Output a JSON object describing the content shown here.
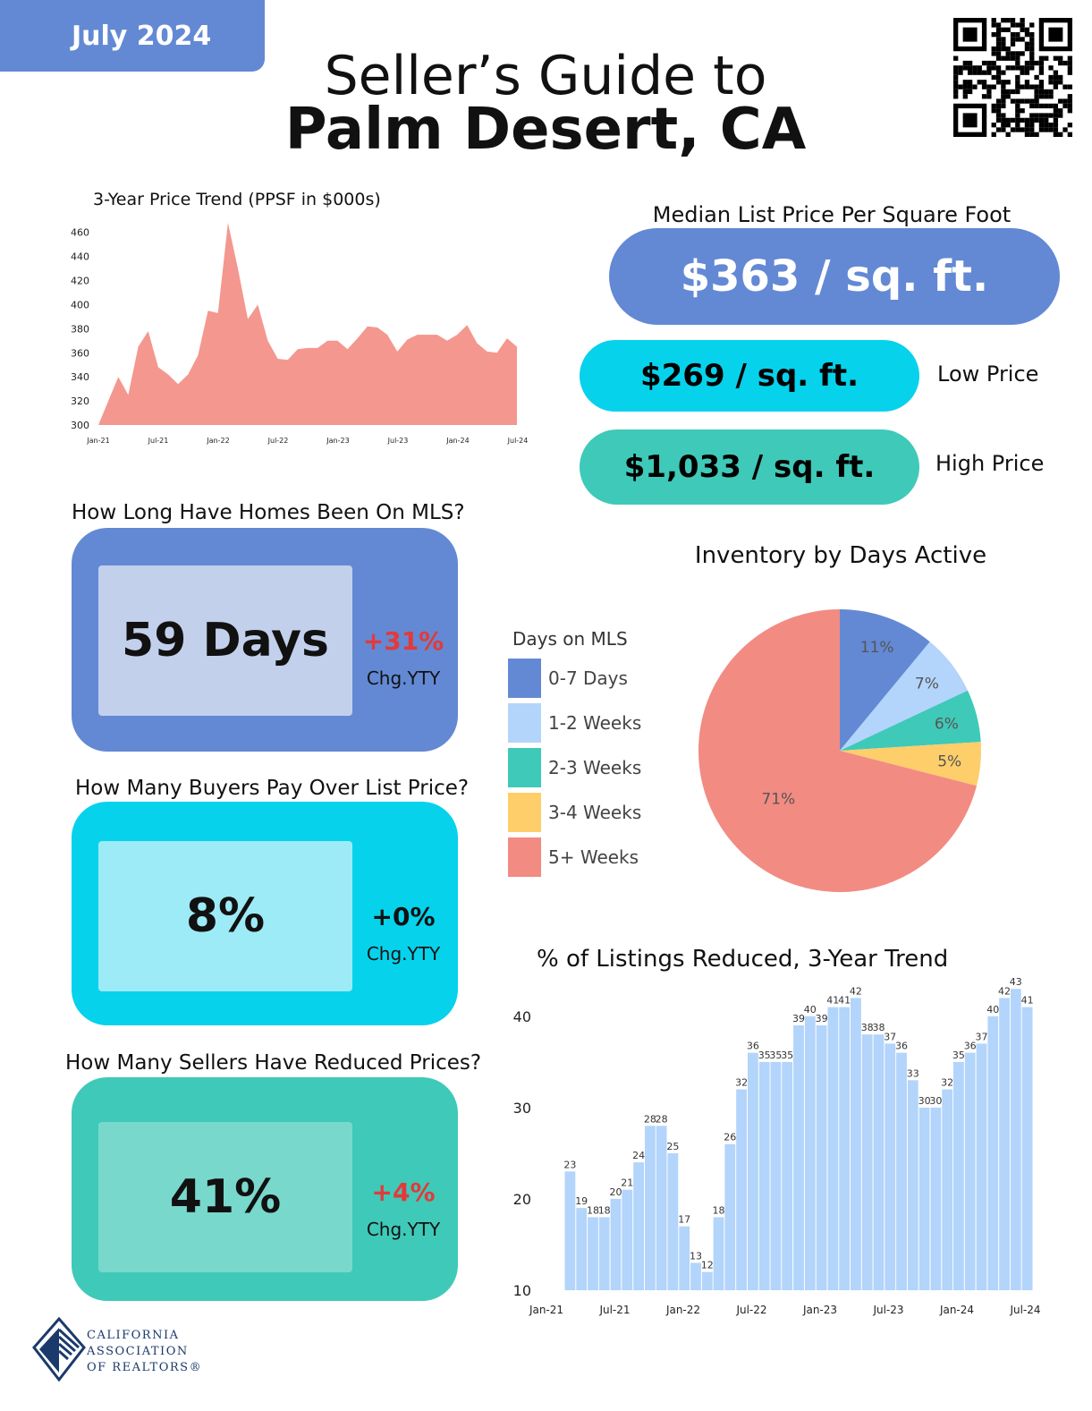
{
  "header": {
    "date": "July 2024",
    "title_line1": "Seller’s Guide to",
    "title_line2": "Palm Desert, CA"
  },
  "price_trend": {
    "title": "3-Year Price Trend (PPSF in $000s)"
  },
  "prices": {
    "median_label": "Median List Price Per Square Foot",
    "median_value": "$363 / sq. ft.",
    "low_value": "$269 / sq. ft.",
    "low_label": "Low Price",
    "high_value": "$1,033 / sq. ft.",
    "high_label": "High Price",
    "colors": {
      "median": "#6389d4",
      "low": "#06d2ec",
      "high": "#3fc9b8"
    }
  },
  "kpis": {
    "mls": {
      "title": "How Long Have Homes Been On MLS?",
      "value": "59 Days",
      "change": "+31%",
      "change_label": "Chg.YTY"
    },
    "over_list": {
      "title": "How Many Buyers Pay Over List Price?",
      "value": "8%",
      "change": "+0%",
      "change_label": "Chg.YTY"
    },
    "reduced": {
      "title": "How Many Sellers Have Reduced Prices?",
      "value": "41%",
      "change": "+4%",
      "change_label": "Chg.YTY"
    }
  },
  "inventory": {
    "title": "Inventory by Days Active",
    "legend_title": "Days on MLS",
    "legend": [
      {
        "label": "0-7 Days",
        "color": "#6389d4"
      },
      {
        "label": "1-2 Weeks",
        "color": "#b3d4fb"
      },
      {
        "label": "2-3 Weeks",
        "color": "#3fc9b8"
      },
      {
        "label": "3-4 Weeks",
        "color": "#fdce6a"
      },
      {
        "label": "5+ Weeks",
        "color": "#f28b82"
      }
    ]
  },
  "reduced_trend": {
    "title": "% of Listings Reduced, 3-Year Trend"
  },
  "footer": {
    "org_line1": "CALIFORNIA",
    "org_line2": "ASSOCIATION",
    "org_line3": "OF REALTORS®"
  },
  "chart_data": [
    {
      "type": "area",
      "title": "3-Year Price Trend (PPSF in $000s)",
      "x_ticks": [
        "Jan-21",
        "Jul-21",
        "Jan-22",
        "Jul-22",
        "Jan-23",
        "Jul-23",
        "Jan-24",
        "Jul-24"
      ],
      "y_ticks": [
        300,
        320,
        340,
        360,
        380,
        400,
        420,
        440,
        460
      ],
      "ylim": [
        300,
        465
      ],
      "color": "#f4978e",
      "values": [
        300,
        320,
        340,
        325,
        365,
        378,
        348,
        342,
        334,
        342,
        358,
        395,
        393,
        468,
        430,
        388,
        400,
        370,
        355,
        354,
        363,
        364,
        364,
        370,
        370,
        363,
        372,
        382,
        381,
        375,
        361,
        371,
        375,
        375,
        375,
        370,
        375,
        383,
        368,
        361,
        360,
        372,
        365
      ]
    },
    {
      "type": "pie",
      "title": "Inventory by Days Active",
      "labels": [
        "0-7 Days",
        "1-2 Weeks",
        "2-3 Weeks",
        "3-4 Weeks",
        "5+ Weeks"
      ],
      "values": [
        11,
        7,
        6,
        5,
        71
      ],
      "value_labels": [
        "11%",
        "7%",
        "6%",
        "5%",
        "71%"
      ],
      "colors": [
        "#6389d4",
        "#b3d4fb",
        "#3fc9b8",
        "#fdce6a",
        "#f28b82"
      ]
    },
    {
      "type": "bar",
      "title": "% of Listings Reduced, 3-Year Trend",
      "x_ticks": [
        "Jan-21",
        "Jul-21",
        "Jan-22",
        "Jul-22",
        "Jan-23",
        "Jul-23",
        "Jan-24",
        "Jul-24"
      ],
      "y_ticks": [
        10,
        20,
        30,
        40
      ],
      "ylim": [
        10,
        44
      ],
      "color": "#b3d4fb",
      "values": [
        23,
        19,
        18,
        18,
        20,
        21,
        24,
        28,
        28,
        25,
        17,
        13,
        12,
        18,
        26,
        32,
        36,
        35,
        35,
        35,
        39,
        40,
        39,
        41,
        41,
        42,
        38,
        38,
        37,
        36,
        33,
        30,
        30,
        32,
        35,
        36,
        37,
        40,
        42,
        43,
        41
      ]
    }
  ]
}
